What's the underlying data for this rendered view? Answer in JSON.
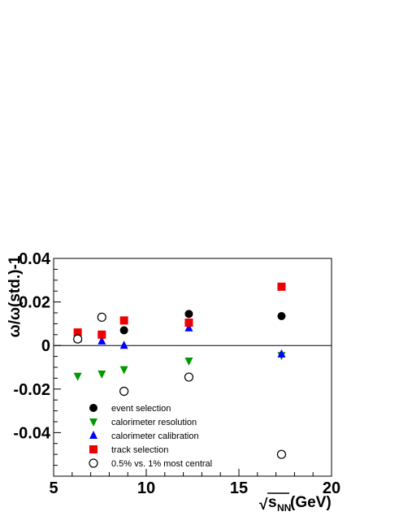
{
  "chart_data": {
    "type": "scatter",
    "xlabel_prefix": "√",
    "xlabel_main": "s",
    "xlabel_sub": "NN",
    "xlabel_suffix": " (GeV)",
    "ylabel": "ω/ω(std.)-1",
    "xlim": [
      5,
      20
    ],
    "ylim": [
      -0.06,
      0.04
    ],
    "x_ticks": [
      5,
      10,
      15,
      20
    ],
    "y_ticks": [
      -0.04,
      -0.02,
      0,
      0.02,
      0.04
    ],
    "y_tick_labels": [
      "-0.04",
      "-0.02",
      "0",
      "0.02",
      "0.04"
    ],
    "zero_line": true,
    "legend_position": "bottom-left",
    "series": [
      {
        "name": "event selection",
        "marker": "circle",
        "color": "#000000",
        "x": [
          6.3,
          7.6,
          8.8,
          12.3,
          17.3
        ],
        "y": [
          0.003,
          0.005,
          0.007,
          0.0145,
          0.0135
        ]
      },
      {
        "name": "calorimeter resolution",
        "marker": "triangle-down",
        "color": "#009900",
        "x": [
          6.3,
          7.6,
          8.8,
          12.3,
          17.3
        ],
        "y": [
          -0.014,
          -0.013,
          -0.011,
          -0.007,
          -0.0045
        ]
      },
      {
        "name": "calorimeter calibration",
        "marker": "triangle-up",
        "color": "#0000ff",
        "x": [
          6.3,
          7.6,
          8.8,
          12.3,
          17.3
        ],
        "y": [
          0.003,
          0.002,
          0.0,
          0.008,
          -0.004
        ]
      },
      {
        "name": "track selection",
        "marker": "square",
        "color": "#ee0000",
        "x": [
          6.3,
          7.6,
          8.8,
          12.3,
          17.3
        ],
        "y": [
          0.006,
          0.005,
          0.0115,
          0.0105,
          0.027
        ]
      },
      {
        "name": "0.5% vs. 1% most central",
        "marker": "open-circle",
        "color": "#000000",
        "x": [
          6.3,
          7.6,
          8.8,
          12.3,
          17.3
        ],
        "y": [
          0.003,
          0.013,
          -0.021,
          -0.0145,
          -0.05
        ]
      }
    ]
  }
}
